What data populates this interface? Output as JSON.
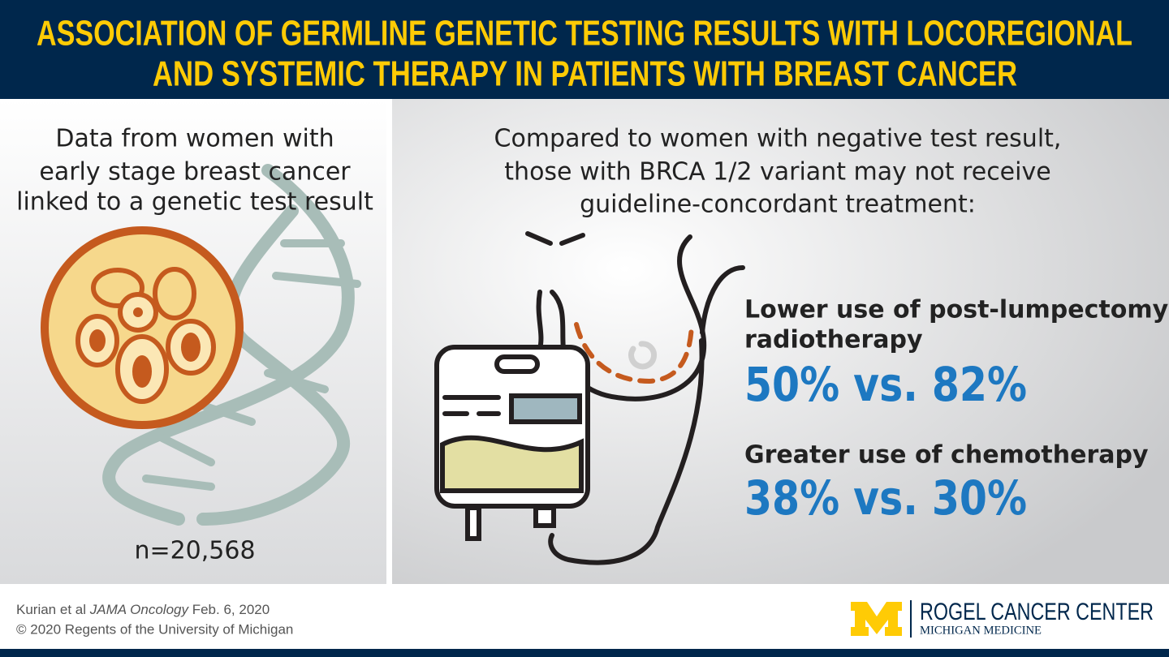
{
  "header": {
    "title_lines": [
      "ASSOCIATION OF GERMLINE GENETIC TESTING RESULTS WITH LOCOREGIONAL",
      "AND SYSTEMIC THERAPY IN PATIENTS WITH BREAST CANCER"
    ]
  },
  "left_panel": {
    "description_lines": [
      "Data from women with",
      "early stage breast cancer",
      "linked to a genetic test result"
    ],
    "sample_size": "n=20,568"
  },
  "right_panel": {
    "intro_lines": [
      "Compared to women with negative test result,",
      "those with BRCA 1/2 variant may not receive",
      "guideline-concordant treatment:"
    ],
    "findings": [
      {
        "label_lines": [
          "Lower use of post-lumpectomy",
          "radiotherapy"
        ],
        "comparison": "50% vs. 82%"
      },
      {
        "label_lines": [
          "Greater use of chemotherapy"
        ],
        "comparison": "38% vs. 30%"
      }
    ]
  },
  "footer": {
    "citation": {
      "authors": "Kurian et al",
      "journal": "JAMA Oncology",
      "date": "Feb. 6, 2020"
    },
    "copyright": "© 2020 Regents of the University of Michigan",
    "logo": {
      "name": "ROGEL CANCER CENTER",
      "subtitle": "MICHIGAN MEDICINE"
    }
  }
}
